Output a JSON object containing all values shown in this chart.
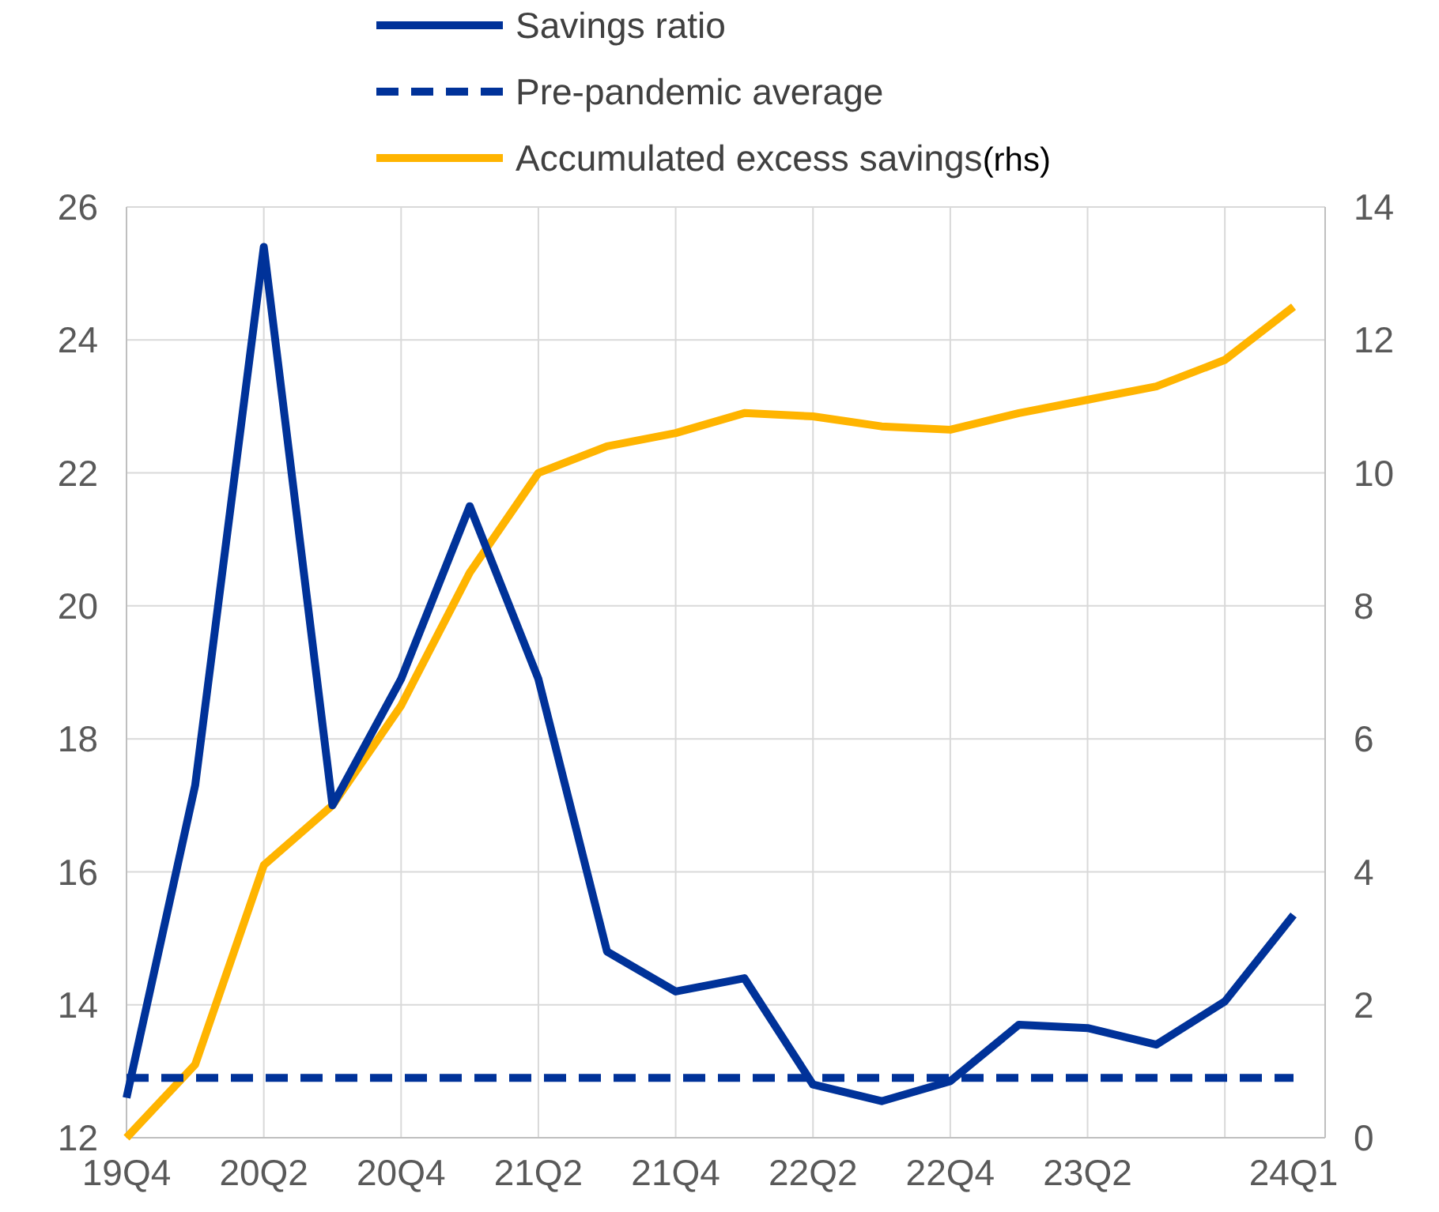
{
  "chart_data": {
    "type": "line",
    "categories": [
      "19Q4",
      null,
      "20Q2",
      null,
      "20Q4",
      null,
      "21Q2",
      null,
      "21Q4",
      null,
      "22Q2",
      null,
      "22Q4",
      null,
      "23Q2",
      null,
      null,
      "24Q1"
    ],
    "series": [
      {
        "name": "Savings ratio",
        "color": "#003299",
        "line_style": "solid",
        "values": [
          12.6,
          17.3,
          25.4,
          17.0,
          18.9,
          21.5,
          18.9,
          14.8,
          14.2,
          14.4,
          12.8,
          12.55,
          12.85,
          13.7,
          13.65,
          13.4,
          14.05,
          15.35
        ]
      },
      {
        "name": "Pre-pandemic average",
        "color": "#003299",
        "line_style": "dashed",
        "values": [
          12.9,
          12.9,
          12.9,
          12.9,
          12.9,
          12.9,
          12.9,
          12.9,
          12.9,
          12.9,
          12.9,
          12.9,
          12.9,
          12.9,
          12.9,
          12.9,
          12.9,
          12.9
        ]
      },
      {
        "name": "Accumulated excess savings",
        "color": "#ffb400",
        "line_style": "solid",
        "axis": "y2",
        "values": [
          0,
          1.1,
          4.1,
          5.0,
          6.5,
          8.5,
          10.0,
          10.4,
          10.6,
          10.9,
          10.85,
          10.7,
          10.65,
          10.9,
          11.1,
          11.3,
          11.7,
          12.5
        ]
      }
    ],
    "y2label": "(rhs)",
    "ylim": [
      12,
      26
    ],
    "yticks": [
      12,
      14,
      16,
      18,
      20,
      22,
      24,
      26
    ],
    "y2lim": [
      0,
      14
    ],
    "y2ticks": [
      0,
      2,
      4,
      6,
      8,
      10,
      12,
      14
    ],
    "grid": true,
    "legend": "top",
    "marker": "none"
  }
}
